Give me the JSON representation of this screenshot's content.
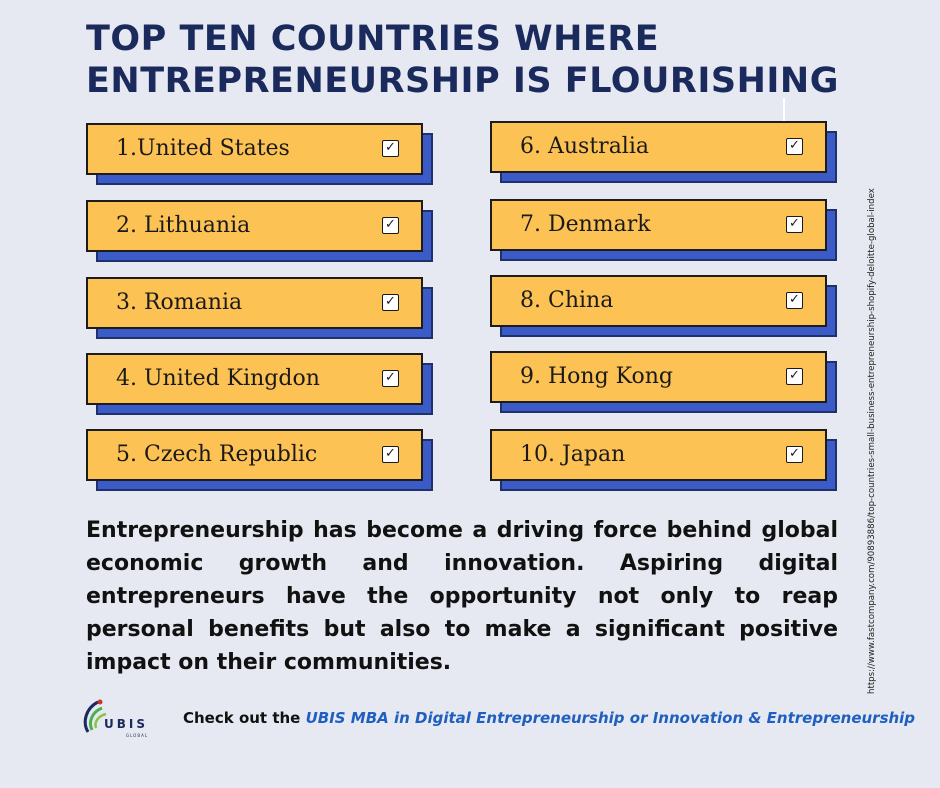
{
  "title": {
    "line1": "TOP TEN COUNTRIES WHERE",
    "line2": "ENTREPRENEURSHIP IS FLOURISHING"
  },
  "countries": [
    {
      "label": "1.United States"
    },
    {
      "label": "2. Lithuania"
    },
    {
      "label": "3. Romania"
    },
    {
      "label": "4. United Kingdon"
    },
    {
      "label": "5. Czech Republic"
    },
    {
      "label": "6. Australia"
    },
    {
      "label": "7. Denmark"
    },
    {
      "label": "8. China"
    },
    {
      "label": "9. Hong Kong"
    },
    {
      "label": "10. Japan"
    }
  ],
  "check_glyph": "✓",
  "paragraph": "Entrepreneurship has become a driving force behind global economic growth and innovation. Aspiring digital entrepreneurs have the opportunity not only to reap personal benefits but also to make a significant positive impact on their communities.",
  "source_url": "https://www.fastcompany.com/90893886/top-countries-small-business-entrepreneurship-shopify-deloitte-global-index",
  "logo": {
    "text": "UBIS",
    "subtext": "GLOBAL"
  },
  "cta": {
    "prefix": "Check out the ",
    "link_text": "UBIS MBA in Digital Entrepreneurship or Innovation & Entrepreneurship"
  },
  "colors": {
    "background": "#e6e9f1",
    "title": "#1b2a5c",
    "card_face": "#fdc254",
    "card_shadow": "#3b5cc8",
    "link": "#1f5fbf"
  }
}
